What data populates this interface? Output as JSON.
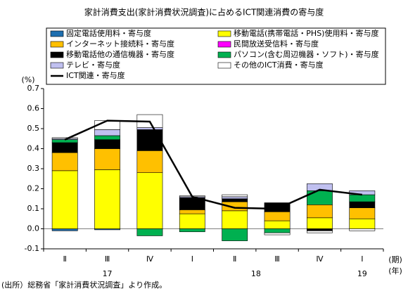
{
  "chart_data": {
    "type": "stacked-bar-line",
    "title": "家計消費支出(家計消費状況調査)に占めるICT関連消費の寄与度",
    "y_unit": "(%)",
    "x_unit_quarter": "(期)",
    "x_unit_year": "(年)",
    "note": "(出所）総務省「家計消費状況調査」より作成。",
    "categories": [
      "Ⅱ",
      "Ⅲ",
      "Ⅳ",
      "Ⅰ",
      "Ⅱ",
      "Ⅲ",
      "Ⅳ",
      "Ⅰ"
    ],
    "years": [
      "17",
      "18",
      "19"
    ],
    "ylim": [
      -0.1,
      0.7
    ],
    "yticks": [
      -0.1,
      {
        "value": 0,
        "label": "0.0"
      },
      0.1,
      0.2,
      0.3,
      0.4,
      0.5,
      0.6,
      0.7
    ],
    "series": [
      {
        "name": "固定電話使用料・寄与度",
        "color": "#1f6fb0",
        "values": [
          -0.01,
          -0.005,
          0,
          0,
          0,
          0,
          0,
          0
        ]
      },
      {
        "name": "移動電話(携帯電話・PHS)使用料・寄与度",
        "color": "#ffff00",
        "values": [
          0.29,
          0.295,
          0.28,
          0.075,
          0.09,
          0.04,
          0.055,
          0.05
        ]
      },
      {
        "name": "インターネット接続料・寄与度",
        "color": "#ffc000",
        "values": [
          0.09,
          0.105,
          0.11,
          0.02,
          0.045,
          0.045,
          0.065,
          0.055
        ]
      },
      {
        "name": "民間放送受信料・寄与度",
        "color": "#ff00ff",
        "values": [
          0,
          0,
          0,
          0,
          0,
          0,
          0,
          0
        ]
      },
      {
        "name": "移動電話他の通信機器・寄与度",
        "color": "#000000",
        "values": [
          0.05,
          0.045,
          0.105,
          0.06,
          0.015,
          0.045,
          -0.01,
          0.03
        ]
      },
      {
        "name": "パソコン(含む周辺機器・ソフト)・寄与度",
        "color": "#00b050",
        "values": [
          0.015,
          0.02,
          -0.035,
          -0.015,
          -0.06,
          -0.02,
          0.07,
          0.035
        ]
      },
      {
        "name": "テレビ・寄与度",
        "color": "#c0c0f0",
        "values": [
          0.005,
          0.03,
          0.01,
          0.005,
          0.01,
          0,
          0.035,
          0.02
        ]
      },
      {
        "name": "その他のICT消費・寄与度",
        "color": "#ffffff",
        "values": [
          0.005,
          0.045,
          0.065,
          0.005,
          0.01,
          -0.01,
          -0.01,
          -0.01
        ]
      }
    ],
    "line": {
      "name": "ICT関連・寄与度",
      "color": "#000000",
      "values": [
        0.445,
        0.54,
        0.535,
        0.16,
        0.105,
        0.1,
        0.195,
        0.17
      ]
    }
  }
}
